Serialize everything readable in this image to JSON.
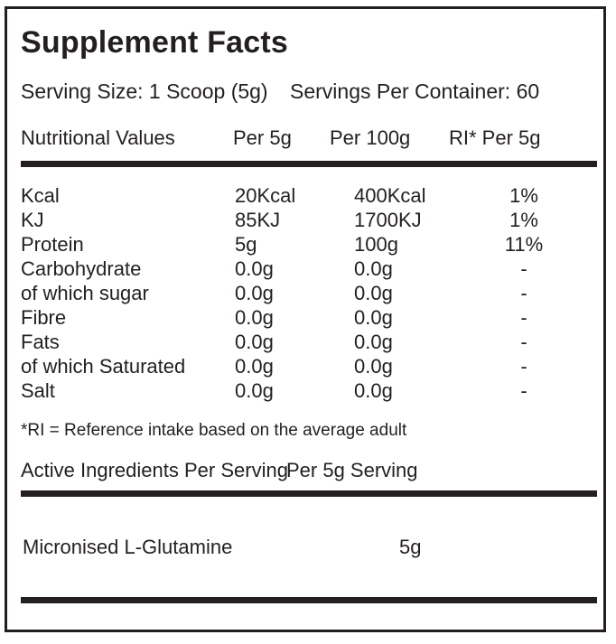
{
  "panel": {
    "title": "Supplement Facts",
    "serving": {
      "size_label": "Serving Size:",
      "size_value": "1 Scoop (5g)",
      "container_label": "Servings Per Container:",
      "container_value": "60"
    },
    "nutrition_table": {
      "headers": {
        "name": "Nutritional Values",
        "per_5g": "Per 5g",
        "per_100g": "Per 100g",
        "ri": "RI* Per 5g"
      },
      "rows": [
        {
          "name": "Kcal",
          "per_5g": "20Kcal",
          "per_100g": "400Kcal",
          "ri": "1%"
        },
        {
          "name": "KJ",
          "per_5g": "85KJ",
          "per_100g": "1700KJ",
          "ri": "1%"
        },
        {
          "name": "Protein",
          "per_5g": "5g",
          "per_100g": "100g",
          "ri": "11%"
        },
        {
          "name": "Carbohydrate",
          "per_5g": "0.0g",
          "per_100g": "0.0g",
          "ri": "-"
        },
        {
          "name": "of which sugar",
          "per_5g": "0.0g",
          "per_100g": "0.0g",
          "ri": "-"
        },
        {
          "name": "Fibre",
          "per_5g": "0.0g",
          "per_100g": "0.0g",
          "ri": "-"
        },
        {
          "name": "Fats",
          "per_5g": "0.0g",
          "per_100g": "0.0g",
          "ri": "-"
        },
        {
          "name": "of which Saturated",
          "per_5g": "0.0g",
          "per_100g": "0.0g",
          "ri": "-"
        },
        {
          "name": "Salt",
          "per_5g": "0.0g",
          "per_100g": "0.0g",
          "ri": "-"
        }
      ]
    },
    "footnote": "*RI = Reference intake based on the average adult",
    "active_ingredients": {
      "header_left": "Active Ingredients Per Serving",
      "header_right": "Per 5g Serving",
      "rows": [
        {
          "name": "Micronised L-Glutamine",
          "amount": "5g"
        }
      ]
    },
    "colors": {
      "text": "#231f20",
      "rule": "#231f20",
      "background": "#ffffff"
    }
  }
}
